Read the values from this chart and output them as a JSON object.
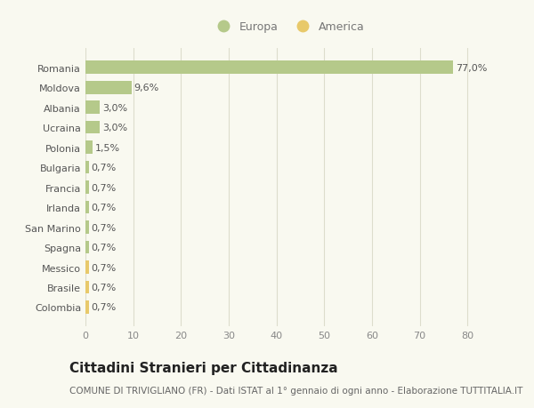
{
  "categories": [
    "Romania",
    "Moldova",
    "Albania",
    "Ucraina",
    "Polonia",
    "Bulgaria",
    "Francia",
    "Irlanda",
    "San Marino",
    "Spagna",
    "Messico",
    "Brasile",
    "Colombia"
  ],
  "values": [
    77.0,
    9.6,
    3.0,
    3.0,
    1.5,
    0.7,
    0.7,
    0.7,
    0.7,
    0.7,
    0.7,
    0.7,
    0.7
  ],
  "labels": [
    "77,0%",
    "9,6%",
    "3,0%",
    "3,0%",
    "1,5%",
    "0,7%",
    "0,7%",
    "0,7%",
    "0,7%",
    "0,7%",
    "0,7%",
    "0,7%",
    "0,7%"
  ],
  "colors": [
    "#b5c98a",
    "#b5c98a",
    "#b5c98a",
    "#b5c98a",
    "#b5c98a",
    "#b5c98a",
    "#b5c98a",
    "#b5c98a",
    "#b5c98a",
    "#b5c98a",
    "#e8c96a",
    "#e8c96a",
    "#e8c96a"
  ],
  "legend_europa_color": "#b5c98a",
  "legend_america_color": "#e8c96a",
  "xlim": [
    0,
    85
  ],
  "xticks": [
    0,
    10,
    20,
    30,
    40,
    50,
    60,
    70,
    80
  ],
  "title": "Cittadini Stranieri per Cittadinanza",
  "subtitle": "COMUNE DI TRIVIGLIANO (FR) - Dati ISTAT al 1° gennaio di ogni anno - Elaborazione TUTTITALIA.IT",
  "background_color": "#f9f9f0",
  "grid_color": "#ddddcc",
  "bar_height": 0.65,
  "title_fontsize": 11,
  "subtitle_fontsize": 7.5,
  "label_fontsize": 8,
  "tick_fontsize": 8,
  "legend_fontsize": 9
}
